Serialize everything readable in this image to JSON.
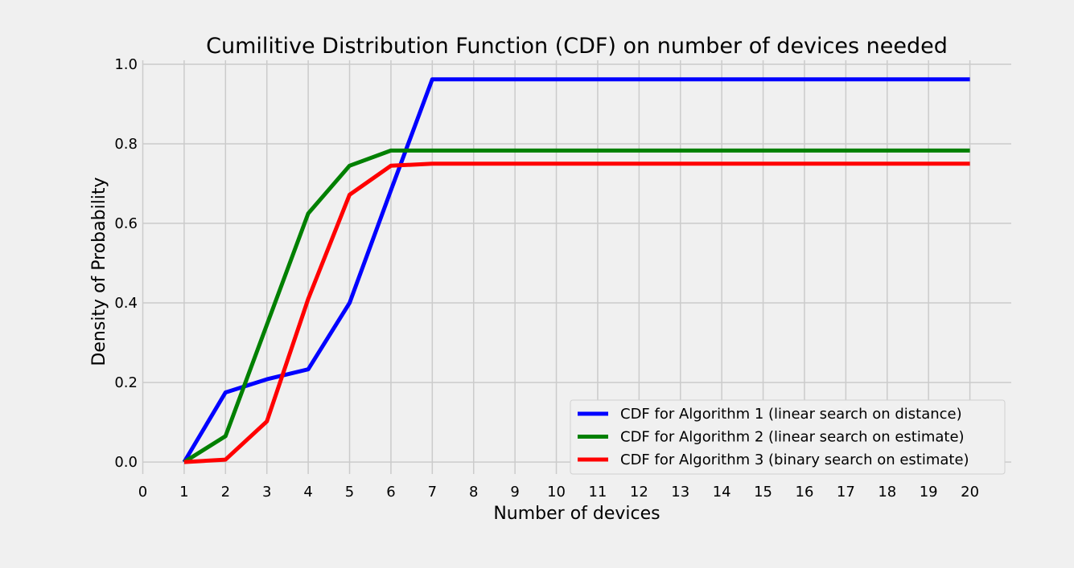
{
  "chart_data": {
    "type": "line",
    "title": "Cumilitive Distribution Function (CDF) on number of devices needed",
    "xlabel": "Number of devices",
    "ylabel": "Density of Probability",
    "xlim": [
      0,
      21
    ],
    "ylim": [
      -0.02,
      1.0
    ],
    "xticks": [
      0,
      1,
      2,
      3,
      4,
      5,
      6,
      7,
      8,
      9,
      10,
      11,
      12,
      13,
      14,
      15,
      16,
      17,
      18,
      19,
      20
    ],
    "yticks": [
      0.0,
      0.2,
      0.4,
      0.6,
      0.8,
      1.0
    ],
    "ytick_labels": [
      "0.0",
      "0.2",
      "0.4",
      "0.6",
      "0.8",
      "1.0"
    ],
    "grid": true,
    "legend_position": "lower-right",
    "x": [
      1,
      2,
      3,
      4,
      5,
      6,
      7,
      8,
      9,
      10,
      11,
      12,
      13,
      14,
      15,
      16,
      17,
      18,
      19,
      20
    ],
    "series": [
      {
        "name": "CDF for Algorithm 1 (linear search on distance)",
        "color": "#0000ff",
        "values": [
          0.0,
          0.175,
          0.208,
          0.233,
          0.4,
          0.683,
          0.962,
          0.962,
          0.962,
          0.962,
          0.962,
          0.962,
          0.962,
          0.962,
          0.962,
          0.962,
          0.962,
          0.962,
          0.962,
          0.962
        ]
      },
      {
        "name": "CDF for Algorithm 2 (linear search on estimate)",
        "color": "#008000",
        "values": [
          0.0,
          0.065,
          0.345,
          0.625,
          0.745,
          0.783,
          0.783,
          0.783,
          0.783,
          0.783,
          0.783,
          0.783,
          0.783,
          0.783,
          0.783,
          0.783,
          0.783,
          0.783,
          0.783,
          0.783
        ]
      },
      {
        "name": "CDF for Algorithm 3 (binary search on estimate)",
        "color": "#ff0000",
        "values": [
          0.0,
          0.006,
          0.102,
          0.41,
          0.672,
          0.745,
          0.75,
          0.75,
          0.75,
          0.75,
          0.75,
          0.75,
          0.75,
          0.75,
          0.75,
          0.75,
          0.75,
          0.75,
          0.75,
          0.75
        ]
      }
    ]
  }
}
